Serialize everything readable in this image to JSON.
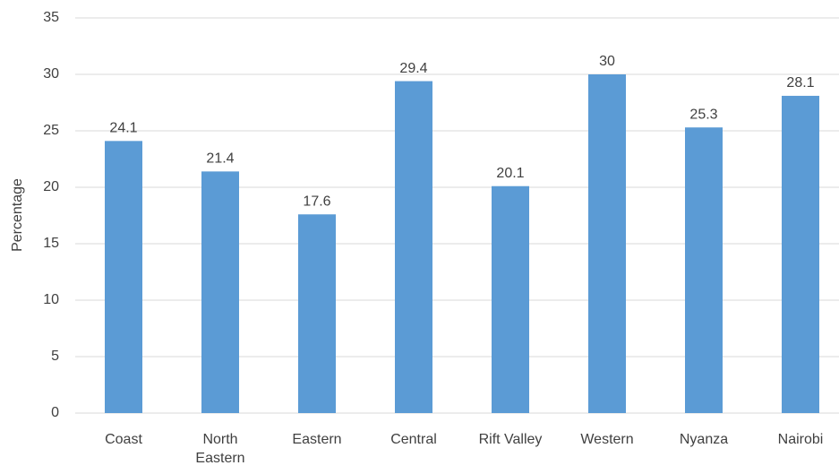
{
  "chart_data": {
    "type": "bar",
    "y_label": "Percentage",
    "categories": [
      "Coast",
      "North Eastern",
      "Eastern",
      "Central",
      "Rift Valley",
      "Western",
      "Nyanza",
      "Nairobi"
    ],
    "values": [
      24.1,
      21.4,
      17.6,
      29.4,
      20.1,
      30,
      25.3,
      28.1
    ],
    "color": "#5b9bd5",
    "ylim": [
      0,
      35
    ],
    "yticks": [
      0,
      5,
      10,
      15,
      20,
      25,
      30,
      35
    ],
    "grid": true
  }
}
